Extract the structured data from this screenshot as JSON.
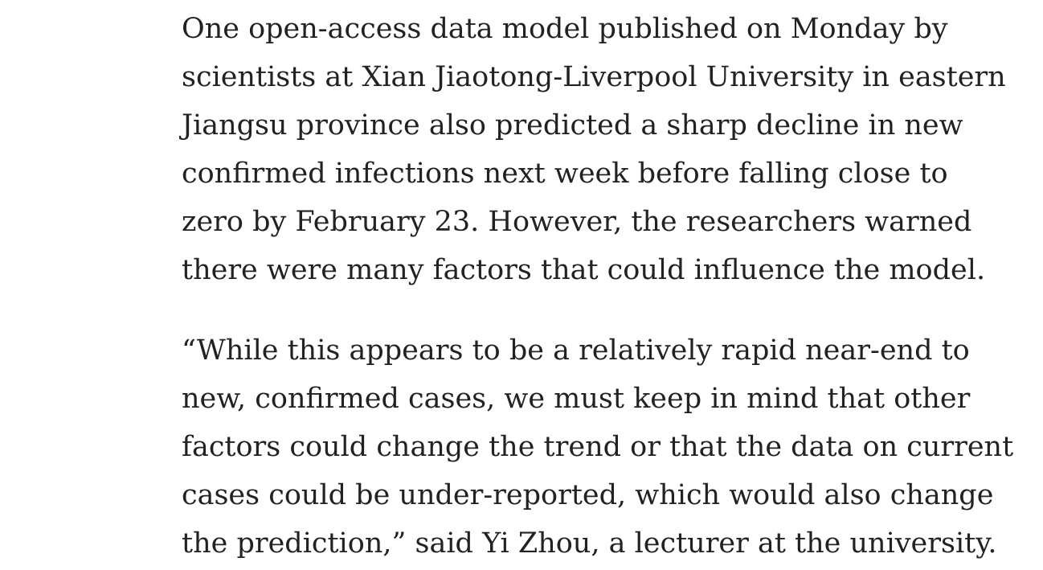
{
  "article": {
    "paragraphs": [
      {
        "lines": [
          "One open-access data model published on Monday by",
          "scientists at Xian Jiaotong-Liverpool University in eastern",
          "Jiangsu province also predicted a sharp decline in new",
          "confirmed infections next week before falling close to",
          "zero by February 23. However, the researchers warned",
          "there were many factors that could influence the model."
        ]
      },
      {
        "lines": [
          "“While this appears to be a relatively rapid near-end to",
          "new, confirmed cases, we must keep in mind that other",
          "factors could change the trend or that the data on current",
          "cases could be under-reported, which would also change",
          "the prediction,” said Yi Zhou, a lecturer at the university."
        ]
      }
    ]
  }
}
